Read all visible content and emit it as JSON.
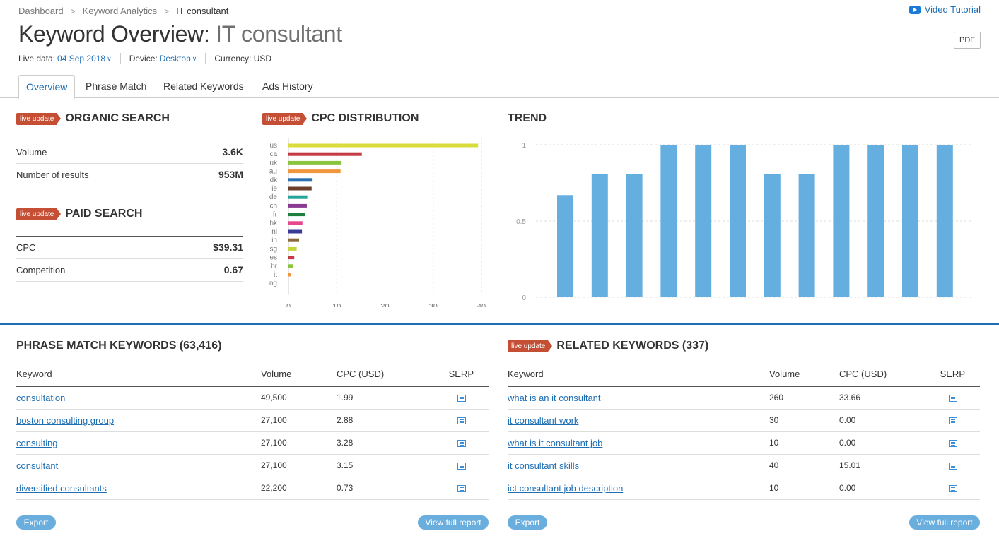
{
  "breadcrumb": [
    "Dashboard",
    "Keyword Analytics",
    "IT consultant"
  ],
  "video_tutorial": "Video Tutorial",
  "title": {
    "prefix": "Keyword Overview:",
    "keyword": "IT consultant"
  },
  "pdf_label": "PDF",
  "meta": {
    "live_data_label": "Live data:",
    "live_data_value": "04 Sep 2018",
    "device_label": "Device:",
    "device_value": "Desktop",
    "currency": "Currency: USD"
  },
  "tabs": [
    "Overview",
    "Phrase Match",
    "Related Keywords",
    "Ads History"
  ],
  "badge": "live update",
  "organic": {
    "title": "ORGANIC SEARCH",
    "rows": [
      {
        "label": "Volume",
        "value": "3.6K"
      },
      {
        "label": "Number of results",
        "value": "953M"
      }
    ]
  },
  "paid": {
    "title": "PAID SEARCH",
    "rows": [
      {
        "label": "CPC",
        "value": "$39.31"
      },
      {
        "label": "Competition",
        "value": "0.67"
      }
    ]
  },
  "cpc_title": "CPC DISTRIBUTION",
  "trend_title": "TREND",
  "chart_data": [
    {
      "type": "bar",
      "title": "CPC DISTRIBUTION",
      "orientation": "horizontal",
      "categories": [
        "us",
        "ca",
        "uk",
        "au",
        "dk",
        "ie",
        "de",
        "ch",
        "fr",
        "hk",
        "nl",
        "in",
        "sg",
        "es",
        "br",
        "it",
        "ng"
      ],
      "values": [
        39.3,
        15.2,
        11.0,
        10.8,
        5.0,
        4.8,
        3.9,
        3.8,
        3.4,
        2.9,
        2.8,
        2.2,
        1.7,
        1.2,
        0.9,
        0.5,
        0
      ],
      "colors": [
        "#d8dd3c",
        "#c23b45",
        "#8bc43f",
        "#f0973d",
        "#2a6fb0",
        "#6b3f2a",
        "#25a59a",
        "#8b3a93",
        "#1f7f3f",
        "#e8488e",
        "#3b3a96",
        "#8a6a3a",
        "#c6d43c",
        "#c23b45",
        "#8bc43f",
        "#f0973d",
        "#2a6fb0"
      ],
      "xticks": [
        0,
        10,
        20,
        30,
        40
      ],
      "xlim": [
        0,
        40
      ]
    },
    {
      "type": "bar",
      "title": "TREND",
      "values": [
        0.67,
        0.81,
        0.81,
        1,
        1,
        1,
        0.81,
        0.81,
        1,
        1,
        1,
        1
      ],
      "yticks": [
        0,
        0.5,
        1
      ],
      "ylim": [
        0,
        1
      ],
      "color": "#64aee0"
    }
  ],
  "phrase_match": {
    "title": "PHRASE MATCH KEYWORDS (63,416)",
    "headers": [
      "Keyword",
      "Volume",
      "CPC (USD)",
      "SERP"
    ],
    "rows": [
      {
        "keyword": "consultation",
        "volume": "49,500",
        "cpc": "1.99"
      },
      {
        "keyword": "boston consulting group",
        "volume": "27,100",
        "cpc": "2.88"
      },
      {
        "keyword": "consulting",
        "volume": "27,100",
        "cpc": "3.28"
      },
      {
        "keyword": "consultant",
        "volume": "27,100",
        "cpc": "3.15"
      },
      {
        "keyword": "diversified consultants",
        "volume": "22,200",
        "cpc": "0.73"
      }
    ]
  },
  "related": {
    "title": "RELATED KEYWORDS (337)",
    "headers": [
      "Keyword",
      "Volume",
      "CPC (USD)",
      "SERP"
    ],
    "rows": [
      {
        "keyword": "what is an it consultant",
        "volume": "260",
        "cpc": "33.66"
      },
      {
        "keyword": "it consultant work",
        "volume": "30",
        "cpc": "0.00"
      },
      {
        "keyword": "what is it consultant job",
        "volume": "10",
        "cpc": "0.00"
      },
      {
        "keyword": "it consultant skills",
        "volume": "40",
        "cpc": "15.01"
      },
      {
        "keyword": "ict consultant job description",
        "volume": "10",
        "cpc": "0.00"
      }
    ]
  },
  "export_label": "Export",
  "view_full_label": "View full report"
}
